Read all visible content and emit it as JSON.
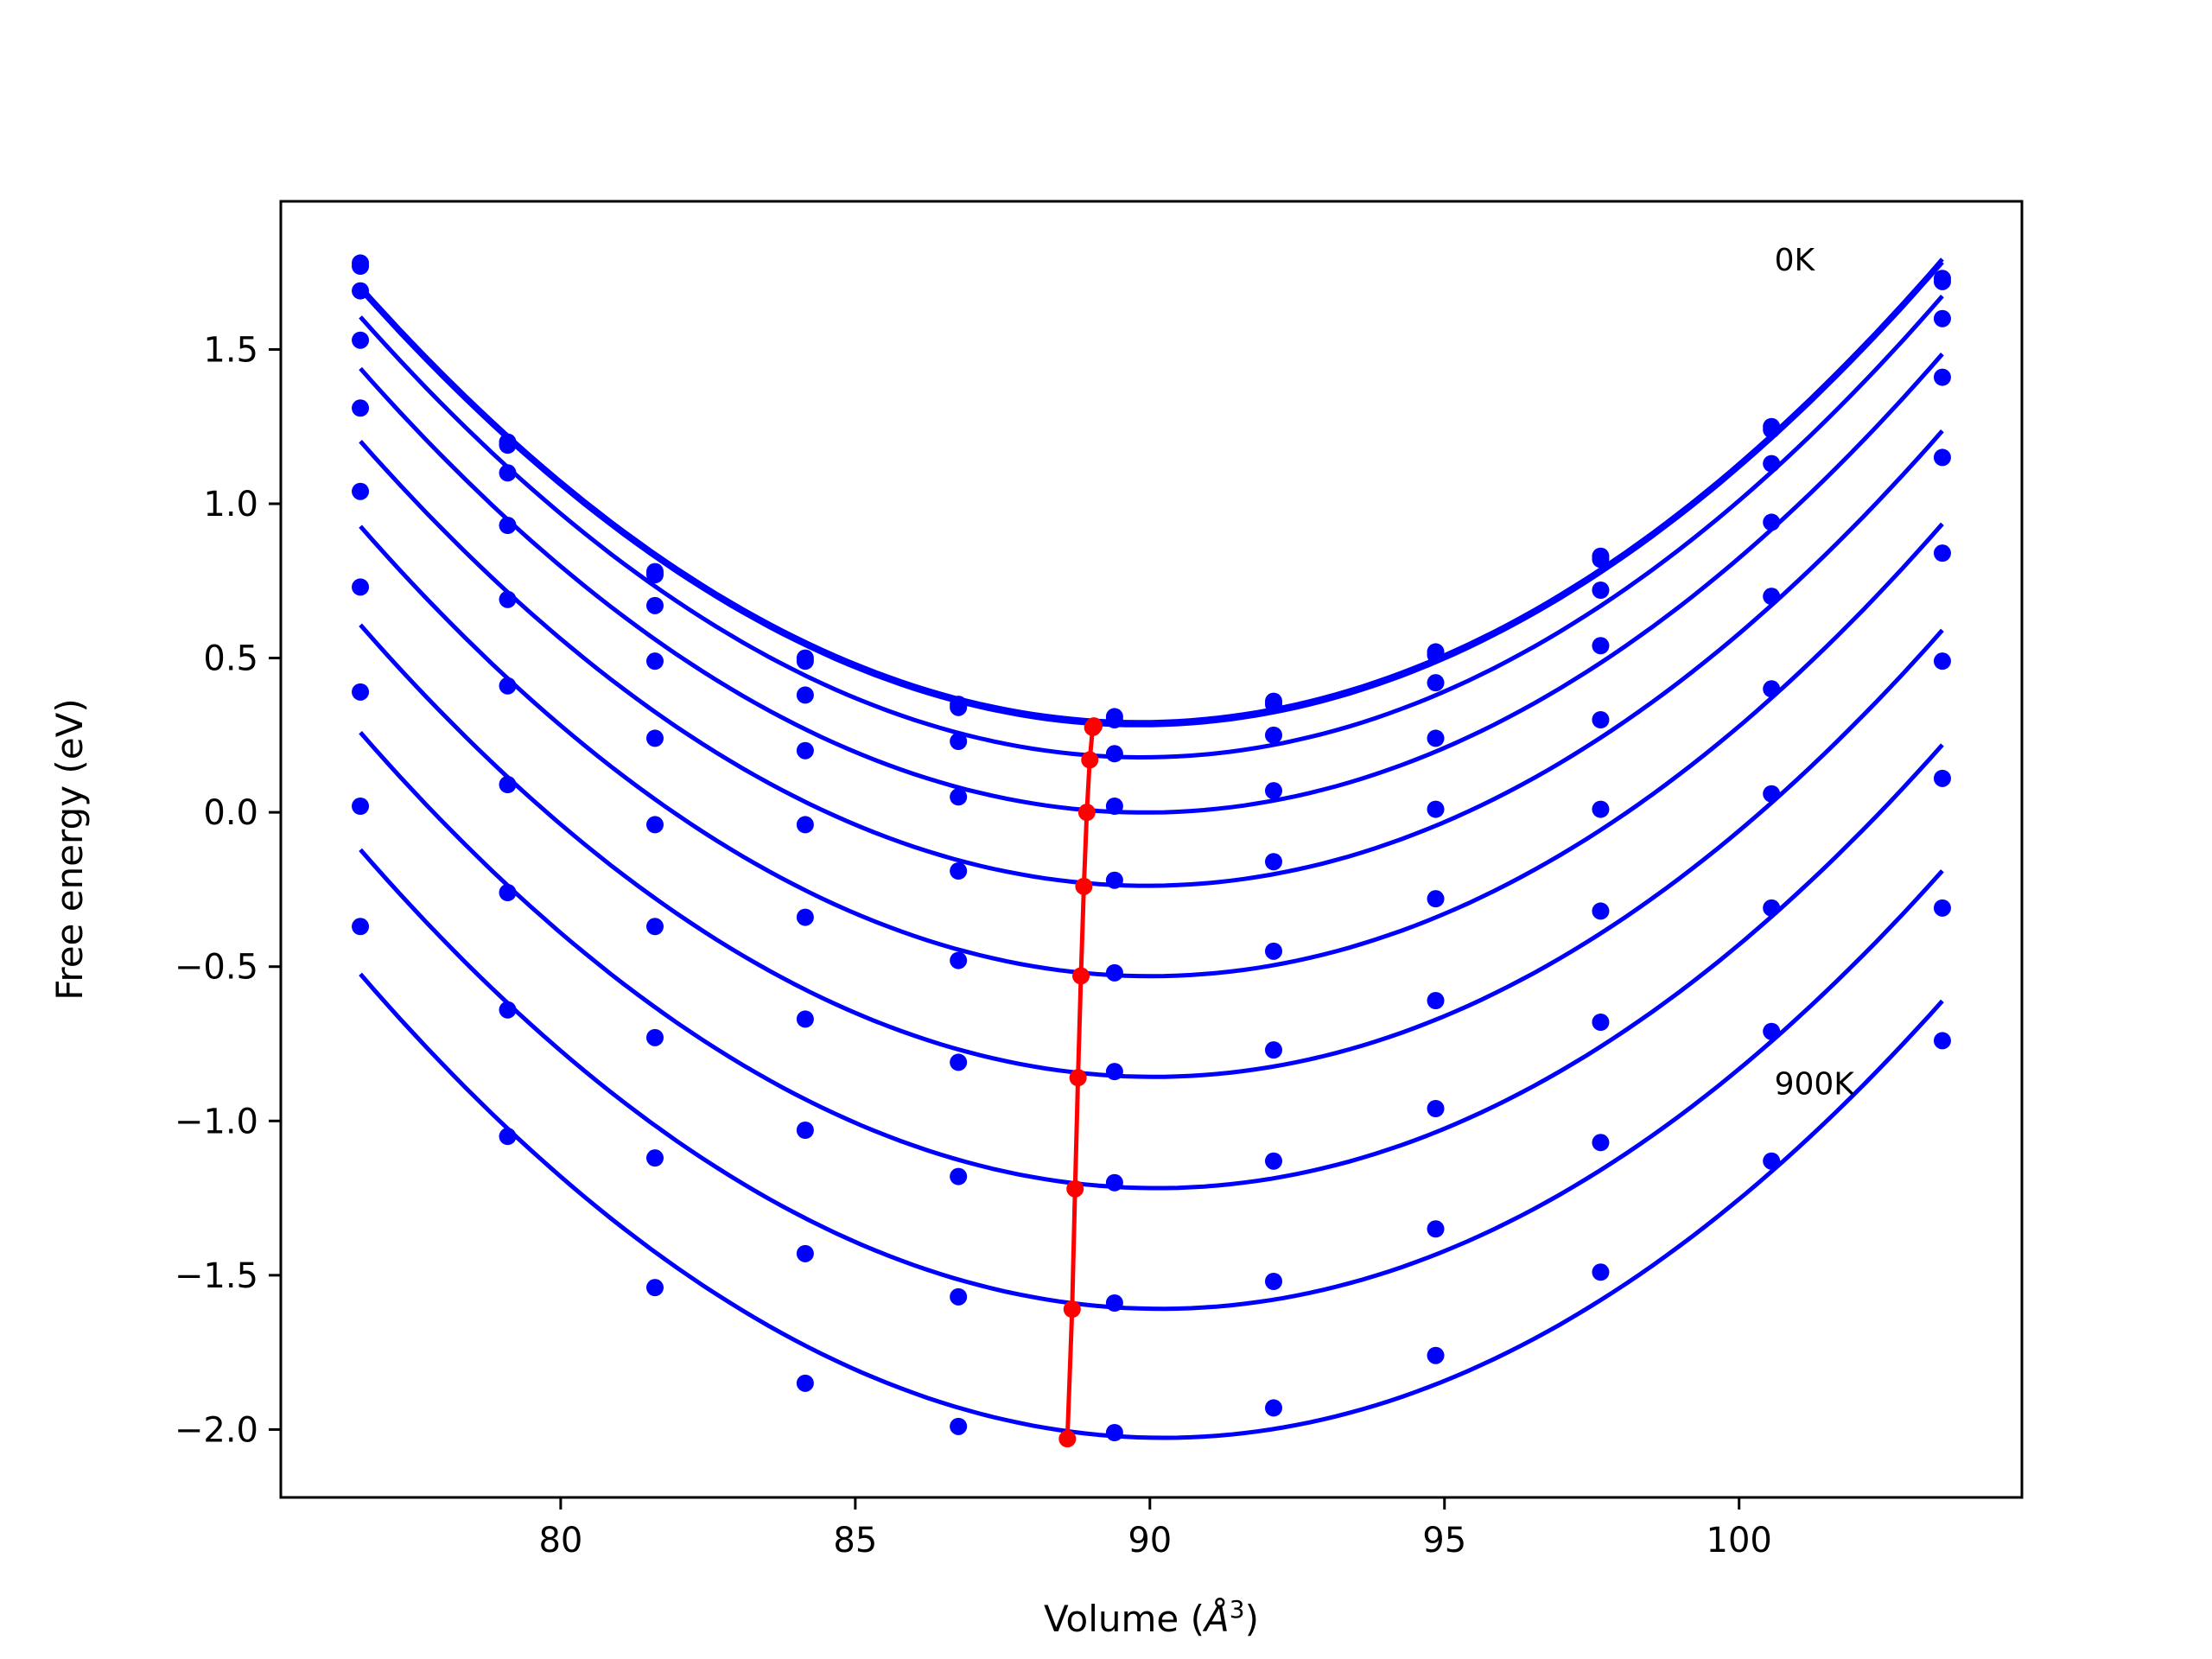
{
  "chart_data": {
    "type": "line",
    "xlabel": "Volume (",
    "xlabel_unit": "Å",
    "xlabel_exp": "3",
    "xlabel_end": ")",
    "ylabel": "Free energy (eV)",
    "xlim": [
      75.25,
      104.8
    ],
    "ylim": [
      -2.22,
      1.98
    ],
    "xticks": [
      80,
      85,
      90,
      95,
      100
    ],
    "xtick_labels": [
      "80",
      "85",
      "90",
      "95",
      "100"
    ],
    "yticks": [
      -2.0,
      -1.5,
      -1.0,
      -0.5,
      0.0,
      0.5,
      1.0,
      1.5
    ],
    "ytick_labels": [
      "−2.0",
      "−1.5",
      "−1.0",
      "−0.5",
      "0.0",
      "0.5",
      "1.0",
      "1.5"
    ],
    "annotations": [
      {
        "text": "0K",
        "x": 100.6,
        "y": 1.79
      },
      {
        "text": "900K",
        "x": 100.6,
        "y": -0.88
      }
    ],
    "grid": false,
    "colors": {
      "curves": "#0000ff",
      "minima": "#ff0000"
    },
    "x": [
      76.6,
      79.1,
      81.6,
      84.15,
      86.75,
      89.4,
      92.1,
      94.85,
      97.65,
      100.55,
      103.45
    ],
    "series": [
      {
        "values": [
          1.78,
          1.2,
          0.78,
          0.5,
          0.35,
          0.31,
          0.36,
          0.52,
          0.83,
          1.25,
          1.73
        ],
        "min_x": 89.05,
        "min_y": 0.28
      },
      {
        "values": [
          1.77,
          1.19,
          0.77,
          0.49,
          0.34,
          0.3,
          0.35,
          0.51,
          0.82,
          1.24,
          1.72
        ],
        "min_x": 89.03,
        "min_y": 0.275
      },
      {
        "values": [
          1.69,
          1.1,
          0.67,
          0.38,
          0.23,
          0.19,
          0.25,
          0.42,
          0.72,
          1.13,
          1.6
        ],
        "min_x": 88.98,
        "min_y": 0.17
      },
      {
        "values": [
          1.53,
          0.93,
          0.49,
          0.2,
          0.05,
          0.02,
          0.07,
          0.24,
          0.54,
          0.94,
          1.41
        ],
        "min_x": 88.93,
        "min_y": 0.0
      },
      {
        "values": [
          1.31,
          0.69,
          0.24,
          -0.04,
          -0.19,
          -0.22,
          -0.16,
          0.01,
          0.3,
          0.7,
          1.15
        ],
        "min_x": 88.88,
        "min_y": -0.24
      },
      {
        "values": [
          1.04,
          0.41,
          -0.04,
          -0.34,
          -0.48,
          -0.52,
          -0.45,
          -0.28,
          0.01,
          0.4,
          0.84
        ],
        "min_x": 88.83,
        "min_y": -0.53
      },
      {
        "values": [
          0.73,
          0.09,
          -0.37,
          -0.67,
          -0.81,
          -0.84,
          -0.77,
          -0.61,
          -0.32,
          0.06,
          0.49
        ],
        "min_x": 88.78,
        "min_y": -0.86
      },
      {
        "values": [
          0.39,
          -0.26,
          -0.73,
          -1.03,
          -1.18,
          -1.2,
          -1.13,
          -0.96,
          -0.68,
          -0.31,
          0.11
        ],
        "min_x": 88.73,
        "min_y": -1.22
      },
      {
        "values": [
          0.02,
          -0.64,
          -1.12,
          -1.43,
          -1.57,
          -1.59,
          -1.52,
          -1.35,
          -1.07,
          -0.71,
          -0.31
        ],
        "min_x": 88.68,
        "min_y": -1.61
      },
      {
        "values": [
          -0.37,
          -1.05,
          -1.54,
          -1.85,
          -1.99,
          -2.01,
          -1.93,
          -1.76,
          -1.49,
          -1.13,
          -0.74
        ],
        "min_x": 88.6,
        "min_y": -2.03
      }
    ]
  }
}
